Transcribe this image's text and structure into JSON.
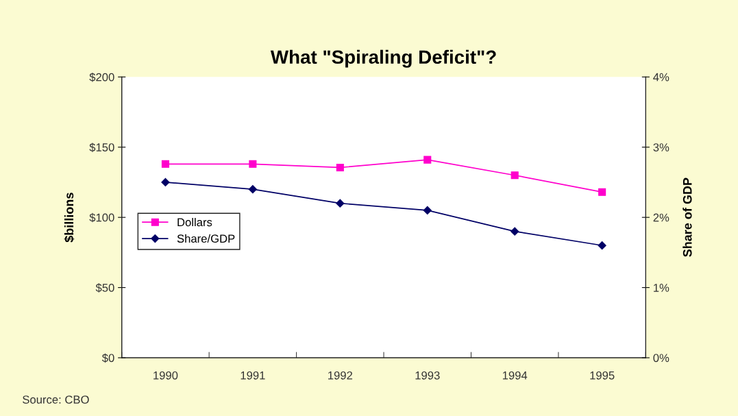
{
  "chart_data": {
    "type": "line",
    "title": "What \"Spiraling Deficit\"?",
    "ylabel": "$billions",
    "y2label": "Share of GDP",
    "categories": [
      "1990",
      "1991",
      "1992",
      "1993",
      "1994",
      "1995"
    ],
    "series": [
      {
        "name": "Dollars",
        "color": "#ff00cc",
        "marker": "square",
        "values": [
          138,
          138,
          135.5,
          141,
          130,
          118
        ]
      },
      {
        "name": "Share/GDP",
        "color": "#000066",
        "marker": "diamond",
        "axis": "y2",
        "values": [
          2.5,
          2.4,
          2.2,
          2.1,
          1.8,
          1.6
        ]
      }
    ],
    "ylim": [
      0,
      200
    ],
    "yticks": [
      {
        "value": 0,
        "label": "$0"
      },
      {
        "value": 50,
        "label": "$50"
      },
      {
        "value": 100,
        "label": "$100"
      },
      {
        "value": 150,
        "label": "$150"
      },
      {
        "value": 200,
        "label": "$200"
      }
    ],
    "y2lim": [
      0,
      4
    ],
    "y2ticks": [
      {
        "value": 0,
        "label": "0%"
      },
      {
        "value": 1,
        "label": "1%"
      },
      {
        "value": 2,
        "label": "2%"
      },
      {
        "value": 3,
        "label": "3%"
      },
      {
        "value": 4,
        "label": "4%"
      }
    ],
    "legend": "center left",
    "grid": false,
    "line_style": "solid",
    "annotations": [
      "Source: CBO"
    ]
  }
}
